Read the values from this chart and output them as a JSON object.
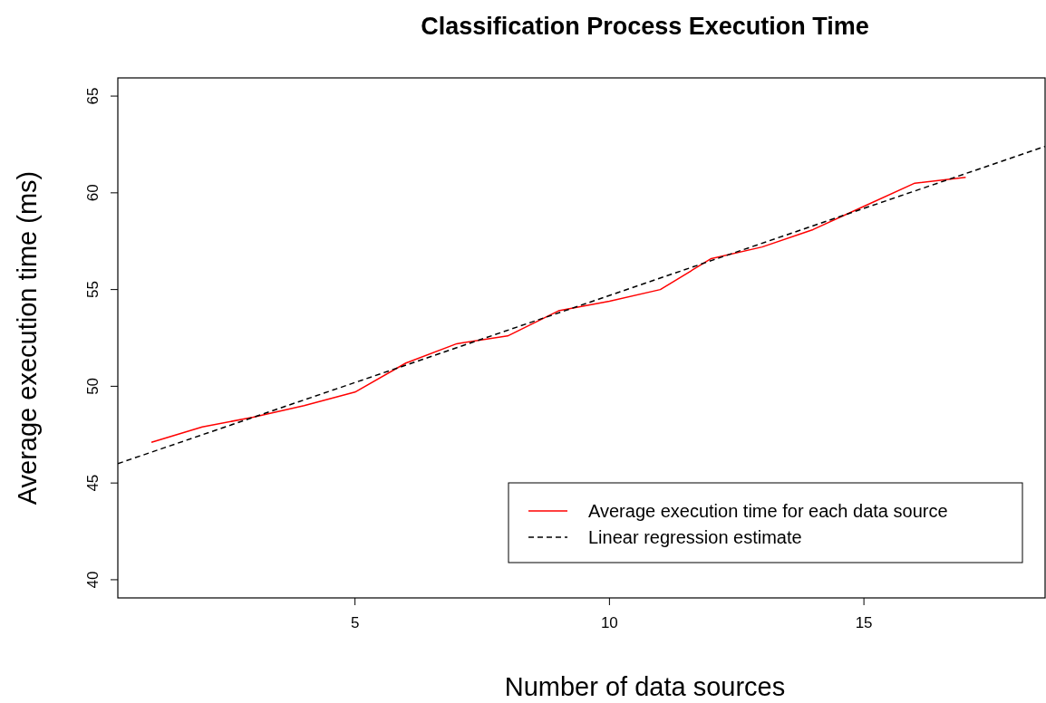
{
  "chart_data": {
    "type": "line",
    "title": "Classification Process Execution Time",
    "xlabel": "Number of data sources",
    "ylabel": "Average execution time (ms)",
    "xlim": [
      0.34,
      18.56
    ],
    "ylim": [
      39.06,
      65.94
    ],
    "xticks": [
      5,
      10,
      15
    ],
    "yticks": [
      40,
      45,
      50,
      55,
      60,
      65
    ],
    "legend": "bottom right",
    "grid": false,
    "series": [
      {
        "name": "Average execution time for each data source",
        "color": "#ff0000",
        "line_style": "solid",
        "x": [
          1,
          2,
          3,
          4,
          5,
          6,
          7,
          8,
          9,
          10,
          11,
          12,
          13,
          14,
          15,
          16,
          17
        ],
        "values": [
          47.1,
          47.9,
          48.4,
          49.0,
          49.7,
          51.2,
          52.2,
          52.6,
          53.9,
          54.4,
          55.0,
          56.6,
          57.2,
          58.1,
          59.3,
          60.5,
          60.8
        ]
      },
      {
        "name": "Linear regression estimate",
        "color": "#000000",
        "line_style": "dashed",
        "x": [
          0.34,
          18.56
        ],
        "values": [
          46.0,
          62.4
        ]
      }
    ]
  }
}
